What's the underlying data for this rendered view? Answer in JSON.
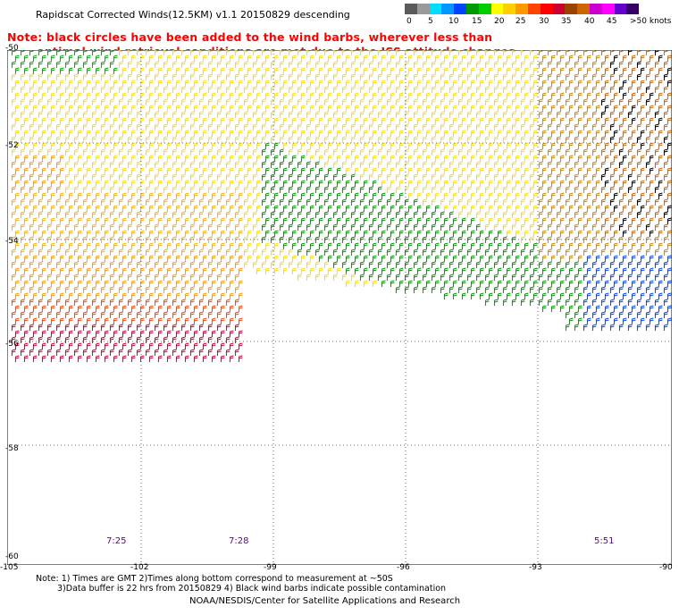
{
  "title": "Rapidscat Corrected Winds(12.5KM) v1.1 20150829 descending",
  "warning": {
    "line1": "Note: black circles have been added to the wind barbs, wherever less than",
    "line2": "optimal wind retrieval conditions are met due to the ISS attitude changes."
  },
  "legend": {
    "colors": [
      "#5a5a5a",
      "#9a9a9a",
      "#00ddff",
      "#0099ff",
      "#0044ff",
      "#009900",
      "#00cc00",
      "#ffff00",
      "#ffd000",
      "#ff9900",
      "#ff4400",
      "#ff0000",
      "#cc0033",
      "#994400",
      "#cc6600",
      "#cc00cc",
      "#ff00ff",
      "#6600cc",
      "#330066"
    ],
    "labels": [
      "0",
      "5",
      "10",
      "15",
      "20",
      "25",
      "30",
      "35",
      "40",
      "45",
      ">50 knots"
    ]
  },
  "latitudes": [
    "-50",
    "-52",
    "-54",
    "-56",
    "-58",
    "-60"
  ],
  "longitudes": [
    "-105",
    "-102",
    "-99",
    "-96",
    "-93",
    "-90"
  ],
  "times": [
    "7:25",
    "7:28",
    "5:51"
  ],
  "bottom_note": {
    "line1": "Note: 1) Times are GMT 2)Times along bottom correspond to measurement at ~50S",
    "line2": "3)Data buffer is 22 hrs from 20150829 4) Black wind barbs indicate possible contamination"
  },
  "credit": "NOAA/NESDIS/Center for Satellite Applications and Research"
}
